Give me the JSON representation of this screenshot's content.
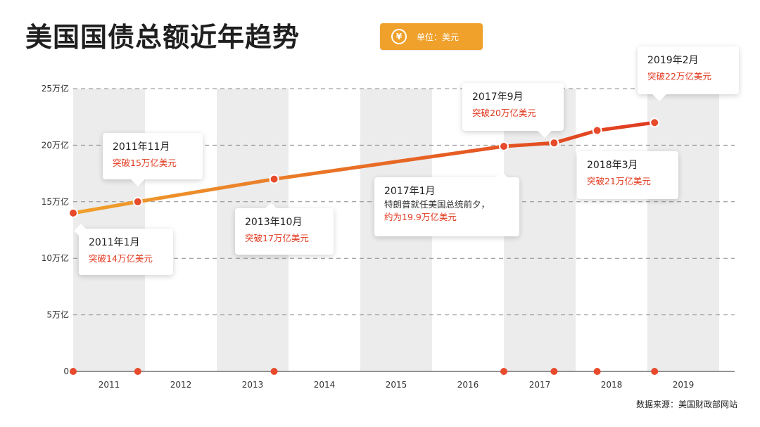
{
  "header": {
    "title": "美国国债总额近年趋势",
    "unit_icon": "¥",
    "unit_label": "单位：美元"
  },
  "source": "数据来源：美国财政部网站",
  "colors": {
    "badge": "#f0a12c",
    "line_start": "#f0a12c",
    "line_end": "#e03a20",
    "point": "#e84a2c",
    "band": "#ececec",
    "highlight_text": "#e03a20"
  },
  "chart_data": {
    "type": "line",
    "title": "美国国债总额近年趋势",
    "y_unit": "万亿美元",
    "yticks": [
      "0",
      "5万亿",
      "10万亿",
      "15万亿",
      "20万亿",
      "25万亿"
    ],
    "ytick_values": [
      0,
      5,
      10,
      15,
      20,
      25
    ],
    "ylim": [
      0,
      25
    ],
    "xlim": [
      2011.0,
      2020.0
    ],
    "x_tick_labels": [
      "2011",
      "2012",
      "2013",
      "2014",
      "2015",
      "2016",
      "2017",
      "2018",
      "2019"
    ],
    "grid": "dashed horizontal",
    "series": [
      {
        "points": [
          {
            "x": 2011.0,
            "y": 14.0,
            "label": "2011年1月"
          },
          {
            "x": 2011.9,
            "y": 15.0,
            "label": "2011年11月"
          },
          {
            "x": 2013.8,
            "y": 17.0,
            "label": "2013年10月"
          },
          {
            "x": 2017.0,
            "y": 19.9,
            "label": "2017年1月"
          },
          {
            "x": 2017.7,
            "y": 20.2,
            "label": "2017年9月"
          },
          {
            "x": 2018.3,
            "y": 21.3,
            "label": "2018年3月"
          },
          {
            "x": 2019.1,
            "y": 22.0,
            "label": "2019年2月"
          }
        ]
      }
    ],
    "annotations": [
      {
        "id": "a2011-1",
        "date": "2011年1月",
        "desc": "",
        "value": "突破14万亿美元"
      },
      {
        "id": "a2011-11",
        "date": "2011年11月",
        "desc": "",
        "value": "突破15万亿美元"
      },
      {
        "id": "a2013-10",
        "date": "2013年10月",
        "desc": "",
        "value": "突破17万亿美元"
      },
      {
        "id": "a2017-1",
        "date": "2017年1月",
        "desc": "特朗普就任美国总统前夕，",
        "value": "约为19.9万亿美元"
      },
      {
        "id": "a2017-9",
        "date": "2017年9月",
        "desc": "",
        "value": "突破20万亿美元"
      },
      {
        "id": "a2018-3",
        "date": "2018年3月",
        "desc": "",
        "value": "突破21万亿美元"
      },
      {
        "id": "a2019-2",
        "date": "2019年2月",
        "desc": "",
        "value": "突破22万亿美元"
      }
    ]
  }
}
